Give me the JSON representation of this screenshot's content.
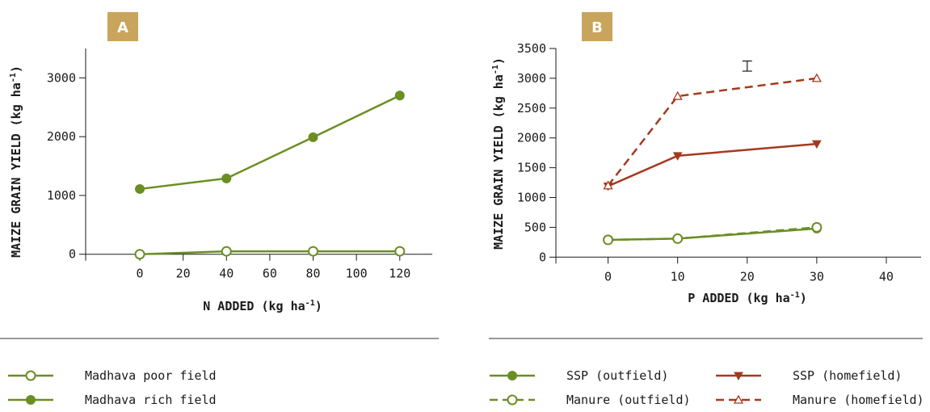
{
  "colors": {
    "green": "#6b8e23",
    "red": "#a33a1e",
    "badge": "#c8a45c"
  },
  "chart_data": [
    {
      "panel": "A",
      "type": "line",
      "xlabel": "N ADDED (kg ha",
      "xlabel_sup": "-1",
      "xlabel_end": ")",
      "ylabel": "MAIZE GRAIN YIELD (kg ha",
      "ylabel_sup": "-1",
      "ylabel_end": ")",
      "xlim": [
        -25,
        135
      ],
      "ylim": [
        -100,
        3500
      ],
      "xticks": [
        0,
        20,
        40,
        60,
        80,
        100,
        120
      ],
      "yticks": [
        0,
        1000,
        2000,
        3000
      ],
      "grid": false,
      "series": [
        {
          "name": "Madhava poor field",
          "color": "#6b8e23",
          "marker": "open-circle",
          "dash": false,
          "x": [
            0,
            40,
            80,
            120
          ],
          "y": [
            0,
            50,
            50,
            50
          ]
        },
        {
          "name": "Madhava rich field",
          "color": "#6b8e23",
          "marker": "filled-circle",
          "dash": false,
          "x": [
            0,
            40,
            80,
            120
          ],
          "y": [
            1110,
            1290,
            1990,
            2700
          ]
        }
      ]
    },
    {
      "panel": "B",
      "type": "line",
      "xlabel": "P ADDED (kg ha",
      "xlabel_sup": "-1",
      "xlabel_end": ")",
      "ylabel": "MAIZE GRAIN YIELD (kg ha",
      "ylabel_sup": "-1",
      "ylabel_end": ")",
      "xlim": [
        -7.5,
        45
      ],
      "ylim": [
        -50,
        3500
      ],
      "xticks": [
        0,
        10,
        20,
        30,
        40
      ],
      "yticks": [
        0,
        500,
        1000,
        1500,
        2000,
        2500,
        3000,
        3500
      ],
      "grid": false,
      "error_bar": {
        "x": 20,
        "y_low": 3120,
        "y_high": 3290
      },
      "series": [
        {
          "name": "SSP (outfield)",
          "color": "#6b8e23",
          "marker": "filled-circle",
          "dash": false,
          "x": [
            0,
            10,
            30
          ],
          "y": [
            290,
            310,
            480
          ]
        },
        {
          "name": "Manure (outfield)",
          "color": "#6b8e23",
          "marker": "open-circle",
          "dash": true,
          "x": [
            0,
            10,
            30
          ],
          "y": [
            290,
            310,
            500
          ]
        },
        {
          "name": "SSP (homefield)",
          "color": "#a33a1e",
          "marker": "filled-triangle-down",
          "dash": false,
          "x": [
            0,
            10,
            30
          ],
          "y": [
            1190,
            1700,
            1900
          ]
        },
        {
          "name": "Manure (homefield)",
          "color": "#a33a1e",
          "marker": "open-triangle-up",
          "dash": true,
          "x": [
            0,
            10,
            30
          ],
          "y": [
            1200,
            2700,
            3000
          ]
        }
      ]
    }
  ]
}
